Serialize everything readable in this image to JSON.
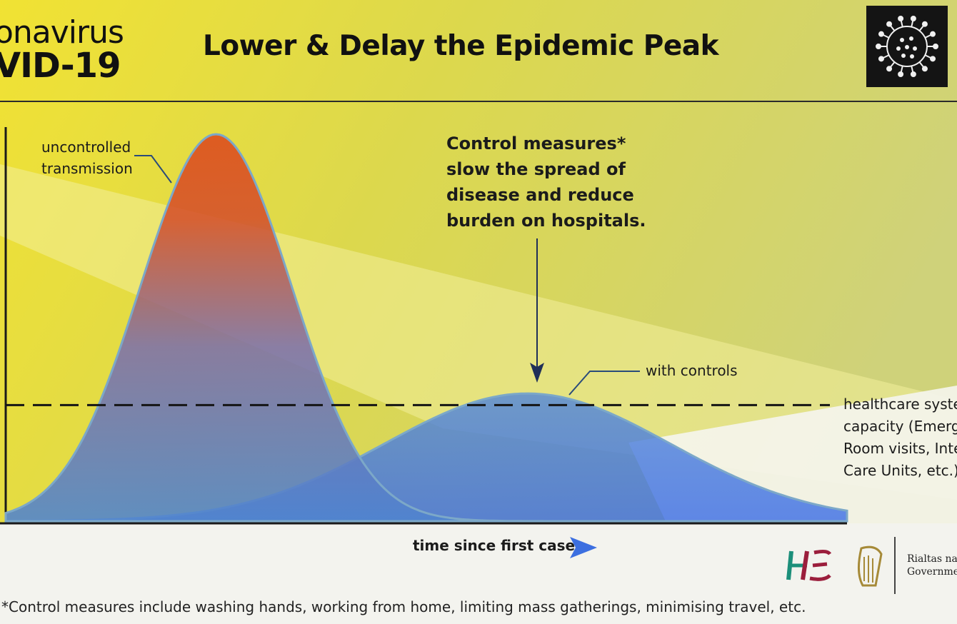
{
  "header": {
    "brand_line1": "onavirus",
    "brand_line2": "VID-19",
    "title": "Lower & Delay the Epidemic Peak"
  },
  "chart_data": {
    "type": "area",
    "title": "Lower & Delay the Epidemic Peak",
    "xlabel": "time since first case",
    "ylabel": "",
    "axes_numeric_labels": false,
    "series": [
      {
        "name": "uncontrolled transmission",
        "peak_x": 0.25,
        "peak_y": 1.0,
        "spread": 0.09,
        "color": "#d24a20"
      },
      {
        "name": "with controls",
        "peak_x": 0.62,
        "peak_y": 0.33,
        "spread": 0.17,
        "color": "#3f74e0"
      }
    ],
    "capacity_line": {
      "label_lines": [
        "healthcare system",
        "capacity (Emergency",
        "Room visits, Intensive",
        "Care Units, etc.)"
      ],
      "y": 0.3,
      "style": "dashed"
    },
    "annotations": {
      "uncontrolled": [
        "uncontrolled",
        "transmission"
      ],
      "with_controls": "with controls",
      "control_measures": [
        "Control measures*",
        "slow the spread of",
        "disease and reduce",
        "burden on hospitals."
      ]
    }
  },
  "footnote": "*Control measures include washing hands, working from home, limiting mass gatherings, minimising travel, etc.",
  "logos": {
    "hse": "HSE logo",
    "gov_lines": [
      "Rialtas na",
      "Governme"
    ]
  },
  "colors": {
    "yellow": "#efe130",
    "olive": "#c9ce68",
    "uncontrolled": "#d24a20",
    "controlled": "#3f74e0",
    "outline": "#7ca8c8"
  }
}
